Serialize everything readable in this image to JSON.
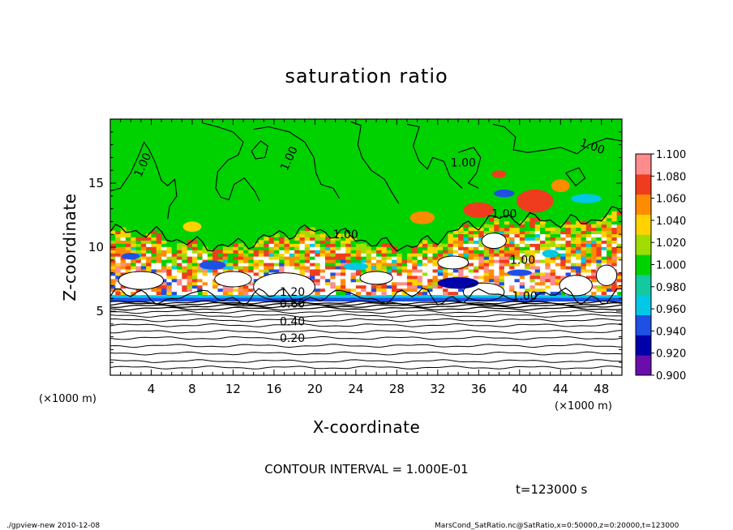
{
  "chart_data": {
    "type": "heatmap",
    "title": "saturation ratio",
    "xlabel": "X-coordinate",
    "ylabel": "Z-coordinate",
    "x_unit": "(×1000 m)",
    "y_unit": "(×1000 m)",
    "xlim": [
      0,
      50
    ],
    "ylim": [
      0,
      20
    ],
    "x_ticks": [
      4,
      8,
      12,
      16,
      20,
      24,
      28,
      32,
      36,
      40,
      44,
      48
    ],
    "y_ticks": [
      5,
      10,
      15
    ],
    "colorbar": {
      "levels": [
        0.9,
        0.92,
        0.94,
        0.96,
        0.98,
        1.0,
        1.02,
        1.04,
        1.06,
        1.08,
        1.1
      ],
      "labels": [
        "0.900",
        "0.920",
        "0.940",
        "0.960",
        "0.980",
        "1.000",
        "1.020",
        "1.040",
        "1.060",
        "1.080",
        "1.100"
      ],
      "colors": [
        "#6a0dad",
        "#0000aa",
        "#1e50e6",
        "#00c8e6",
        "#14c8a0",
        "#00d200",
        "#a0dc00",
        "#ffd200",
        "#ff8c00",
        "#f03c1e",
        "#ff8c8c"
      ]
    },
    "contour_labels": [
      {
        "text": "1.00",
        "x": 3.5,
        "z": 16.3,
        "angle": 65
      },
      {
        "text": "1.00",
        "x": 17.8,
        "z": 16.8,
        "angle": 65
      },
      {
        "text": "1.00",
        "x": 34.5,
        "z": 16.3,
        "angle": 0
      },
      {
        "text": "1.00",
        "x": 47.0,
        "z": 17.6,
        "angle": -20
      },
      {
        "text": "1.00",
        "x": 23.0,
        "z": 10.7,
        "angle": 0
      },
      {
        "text": "1.00",
        "x": 38.5,
        "z": 12.3,
        "angle": 0
      },
      {
        "text": "1.00",
        "x": 40.3,
        "z": 8.7,
        "angle": 0
      },
      {
        "text": "1.00",
        "x": 40.5,
        "z": 5.9,
        "angle": 0
      },
      {
        "text": "1.20",
        "x": 17.8,
        "z": 6.2,
        "angle": 0
      },
      {
        "text": "0.60",
        "x": 17.8,
        "z": 5.3,
        "angle": 0
      },
      {
        "text": "0.40",
        "x": 17.8,
        "z": 3.9,
        "angle": 0
      },
      {
        "text": "0.20",
        "x": 17.8,
        "z": 2.6,
        "angle": 0
      }
    ]
  },
  "texts": {
    "x_unit_left": "(×1000 m)",
    "x_unit_right": "(×1000 m)",
    "contour_interval": "CONTOUR INTERVAL = 1.000E-01",
    "time_label": "t=123000 s",
    "footer_left": "./gpview-new  2010-12-08",
    "footer_right": "MarsCond_SatRatio.nc@SatRatio,x=0:50000,z=0:20000,t=123000"
  }
}
